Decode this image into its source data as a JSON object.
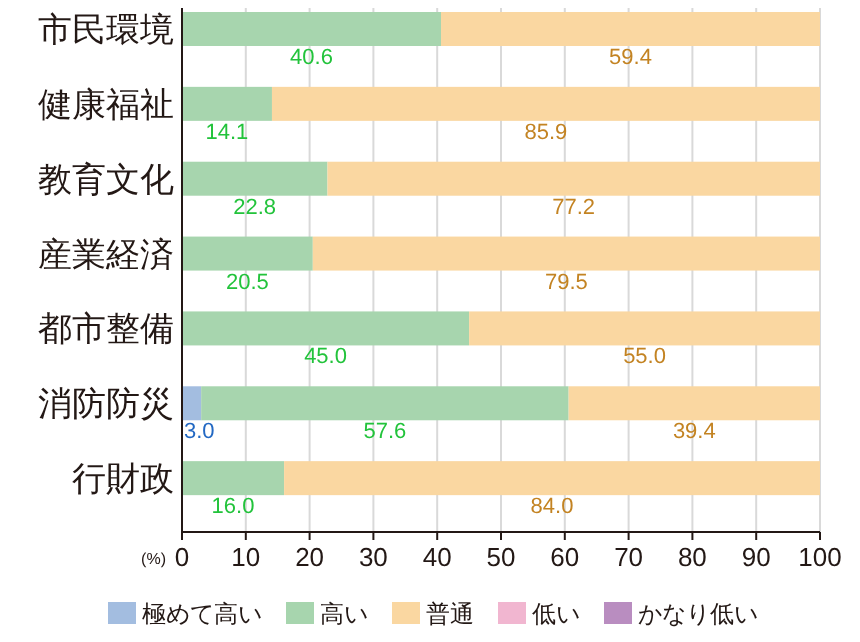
{
  "chart_data": {
    "type": "bar",
    "orientation": "horizontal",
    "stacked": true,
    "categories": [
      "市民環境",
      "健康福祉",
      "教育文化",
      "産業経済",
      "都市整備",
      "消防防災",
      "行財政"
    ],
    "xlabel": "(%)",
    "xlim": [
      0,
      100
    ],
    "xticks": [
      0,
      10,
      20,
      30,
      40,
      50,
      60,
      70,
      80,
      90,
      100
    ],
    "grid": "x",
    "legend": "bottom",
    "series": [
      {
        "name": "極めて高い",
        "color": "#a3bde0",
        "values": [
          0,
          0,
          0,
          0,
          0,
          3.0,
          0
        ],
        "value_labels": [
          null,
          null,
          null,
          null,
          null,
          "3.0",
          null
        ]
      },
      {
        "name": "高い",
        "color": "#a7d5ae",
        "values": [
          40.6,
          14.1,
          22.8,
          20.5,
          45.0,
          57.6,
          16.0
        ],
        "value_labels": [
          "40.6",
          "14.1",
          "22.8",
          "20.5",
          "45.0",
          "57.6",
          "16.0"
        ]
      },
      {
        "name": "普通",
        "color": "#fad7a1",
        "values": [
          59.4,
          85.9,
          77.2,
          79.5,
          55.0,
          39.4,
          84.0
        ],
        "value_labels": [
          "59.4",
          "85.9",
          "77.2",
          "79.5",
          "55.0",
          "39.4",
          "84.0"
        ]
      },
      {
        "name": "低い",
        "color": "#f1b6d0",
        "values": [
          0,
          0,
          0,
          0,
          0,
          0,
          0
        ],
        "value_labels": [
          null,
          null,
          null,
          null,
          null,
          null,
          null
        ]
      },
      {
        "name": "かなり低い",
        "color": "#b98dc0",
        "values": [
          0,
          0,
          0,
          0,
          0,
          0,
          0
        ],
        "value_labels": [
          null,
          null,
          null,
          null,
          null,
          null,
          null
        ]
      }
    ]
  }
}
